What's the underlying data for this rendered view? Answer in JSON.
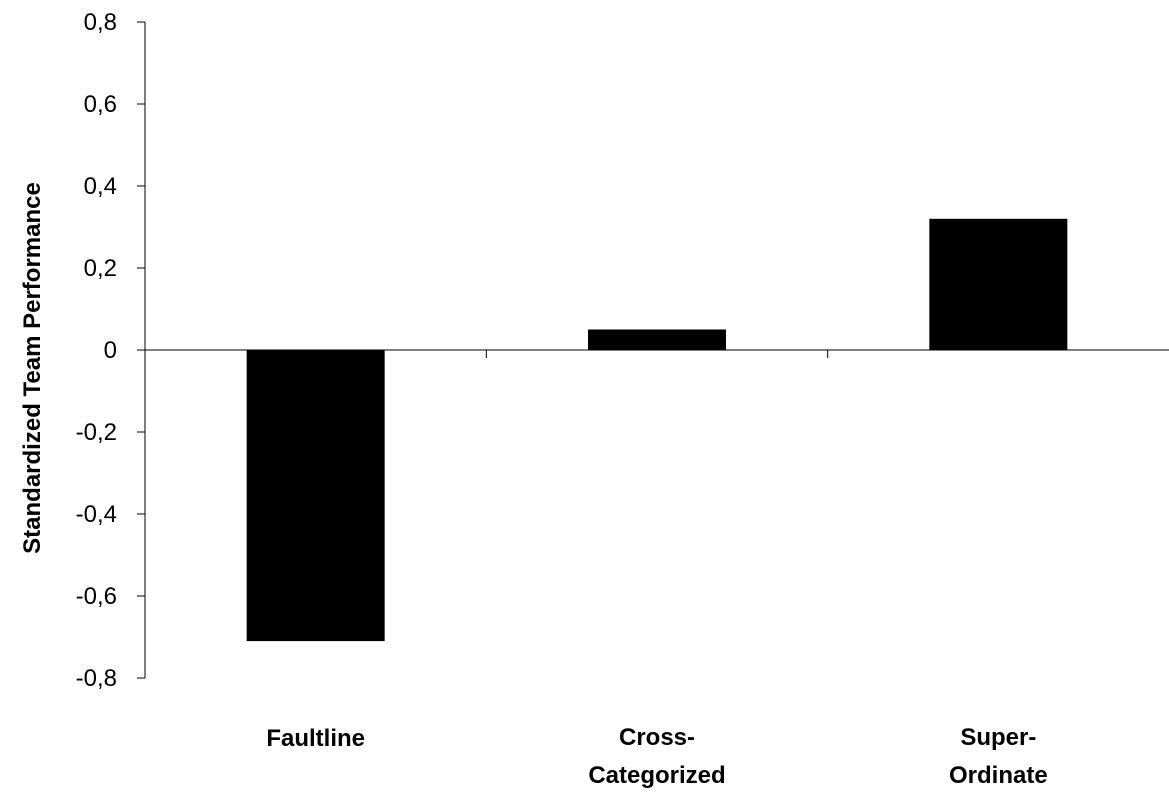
{
  "chart_data": {
    "type": "bar",
    "title": "",
    "xlabel": "",
    "ylabel": "Standardized Team Performance",
    "ylim": [
      -0.8,
      0.8
    ],
    "yticks": [
      0.8,
      0.6,
      0.4,
      0.2,
      0,
      -0.2,
      -0.4,
      -0.6,
      -0.8
    ],
    "ytick_labels": [
      "0,8",
      "0,6",
      "0,4",
      "0,2",
      "0",
      "-0,2",
      "-0,4",
      "-0,6",
      "-0,8"
    ],
    "categories": [
      {
        "lines": [
          "Faultline"
        ]
      },
      {
        "lines": [
          "Cross-",
          "Categorized"
        ]
      },
      {
        "lines": [
          "Super-",
          "Ordinate"
        ]
      }
    ],
    "values": [
      -0.71,
      0.05,
      0.32
    ],
    "bar_color": "#000000",
    "grid": false,
    "legend": "none"
  }
}
